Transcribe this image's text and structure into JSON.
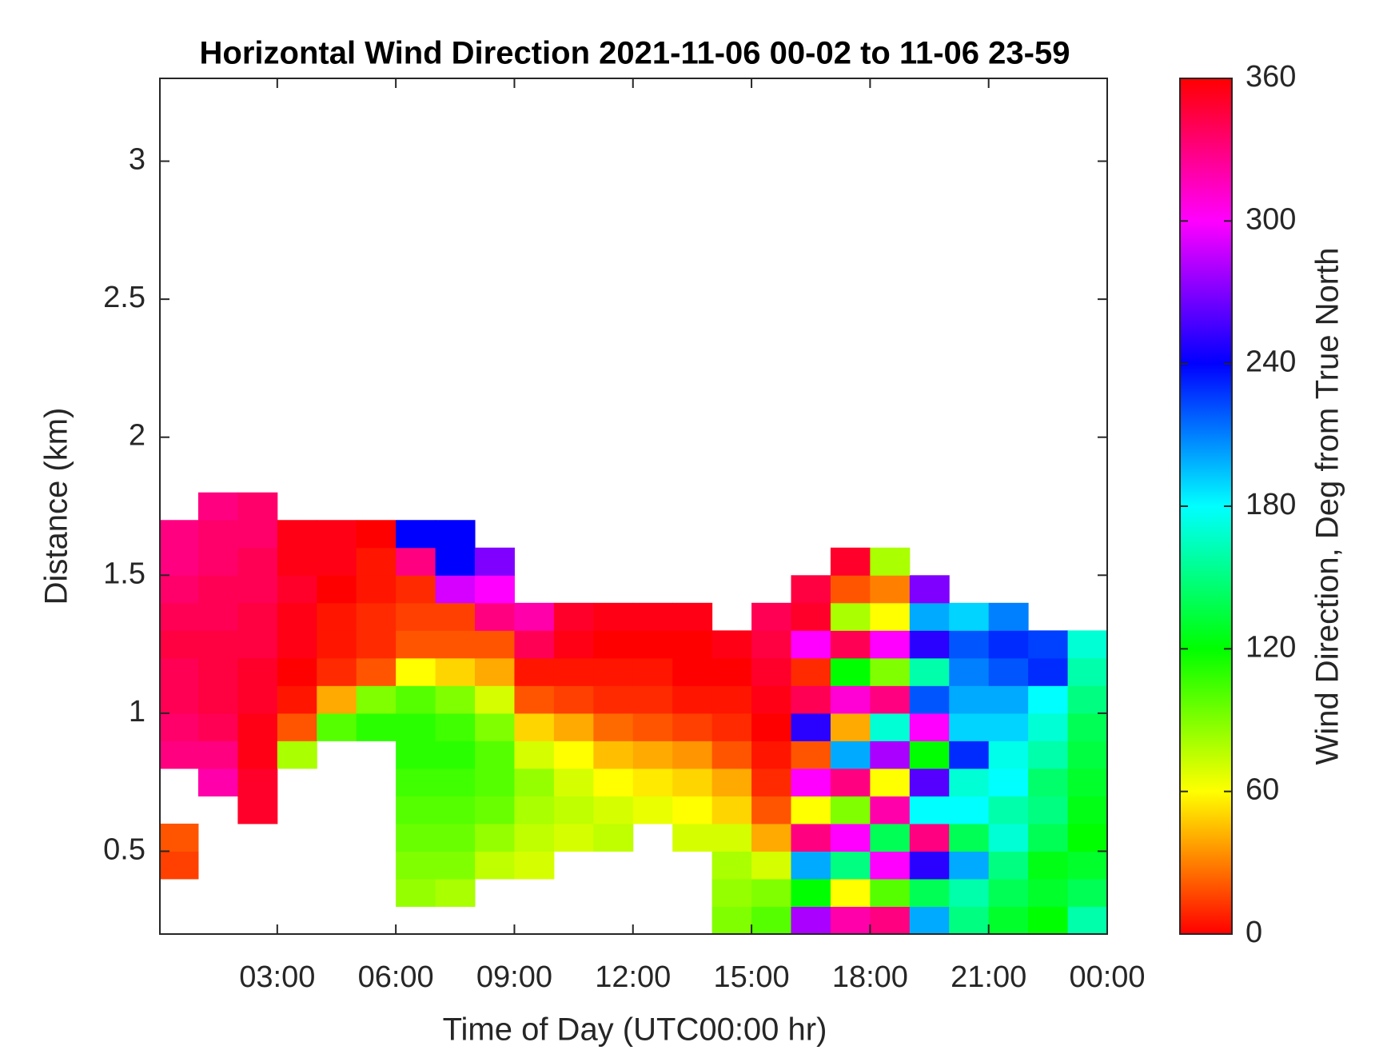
{
  "chart_data": {
    "type": "heatmap",
    "title": "Horizontal Wind Direction 2021-11-06 00-02 to 11-06 23-59",
    "x_label": "Time of Day (UTC00:00 hr)",
    "y_label": "Distance (km)",
    "colorbar_label": "Wind Direction, Deg from True North",
    "colormap": "hsv",
    "clim": [
      0,
      360
    ],
    "cticks": [
      0,
      60,
      120,
      180,
      240,
      300,
      360
    ],
    "xlim": [
      0.03,
      24
    ],
    "xticks": [
      {
        "value": 3,
        "label": "03:00"
      },
      {
        "value": 6,
        "label": "06:00"
      },
      {
        "value": 9,
        "label": "09:00"
      },
      {
        "value": 12,
        "label": "12:00"
      },
      {
        "value": 15,
        "label": "15:00"
      },
      {
        "value": 18,
        "label": "18:00"
      },
      {
        "value": 21,
        "label": "21:00"
      },
      {
        "value": 24,
        "label": "00:00"
      }
    ],
    "ylim": [
      0.2,
      3.3
    ],
    "yticks": [
      0.5,
      1,
      1.5,
      2,
      2.5,
      3
    ],
    "x": [
      0.5,
      1.5,
      2.5,
      3.5,
      4.5,
      5.5,
      6.5,
      7.5,
      8.5,
      9.5,
      10.5,
      11.5,
      12.5,
      13.5,
      14.5,
      15.5,
      16.5,
      17.5,
      18.5,
      19.5,
      20.5,
      21.5,
      22.5,
      23.5
    ],
    "y": [
      0.25,
      0.35,
      0.45,
      0.55,
      0.65,
      0.75,
      0.85,
      0.95,
      1.05,
      1.15,
      1.25,
      1.35,
      1.45,
      1.55,
      1.65,
      1.75
    ],
    "z": [
      [
        null,
        null,
        null,
        null,
        null,
        null,
        null,
        null,
        null,
        null,
        null,
        null,
        null,
        null,
        90,
        100,
        280,
        320,
        330,
        200,
        150,
        130,
        120,
        160
      ],
      [
        null,
        null,
        null,
        null,
        null,
        null,
        85,
        80,
        null,
        null,
        null,
        null,
        null,
        null,
        85,
        90,
        120,
        60,
        100,
        140,
        160,
        140,
        130,
        140
      ],
      [
        15,
        null,
        null,
        null,
        null,
        null,
        90,
        90,
        75,
        70,
        null,
        null,
        null,
        null,
        80,
        70,
        200,
        150,
        300,
        250,
        200,
        150,
        125,
        130
      ],
      [
        20,
        null,
        null,
        null,
        null,
        null,
        95,
        95,
        85,
        75,
        70,
        75,
        null,
        70,
        70,
        40,
        330,
        300,
        140,
        330,
        140,
        170,
        140,
        120
      ],
      [
        null,
        null,
        350,
        null,
        null,
        null,
        100,
        100,
        95,
        80,
        75,
        70,
        65,
        60,
        50,
        20,
        60,
        90,
        320,
        180,
        180,
        160,
        150,
        125
      ],
      [
        null,
        320,
        350,
        null,
        null,
        null,
        105,
        105,
        100,
        85,
        70,
        60,
        55,
        50,
        40,
        10,
        300,
        330,
        60,
        260,
        170,
        180,
        145,
        130
      ],
      [
        330,
        330,
        355,
        80,
        null,
        null,
        110,
        110,
        100,
        70,
        60,
        45,
        40,
        35,
        20,
        5,
        20,
        200,
        280,
        120,
        230,
        175,
        160,
        135
      ],
      [
        335,
        340,
        355,
        20,
        100,
        110,
        110,
        105,
        90,
        50,
        40,
        25,
        20,
        15,
        10,
        0,
        250,
        40,
        170,
        300,
        190,
        190,
        170,
        140
      ],
      [
        340,
        345,
        350,
        5,
        40,
        90,
        100,
        90,
        70,
        20,
        15,
        10,
        10,
        5,
        5,
        355,
        340,
        310,
        330,
        220,
        200,
        200,
        180,
        150
      ],
      [
        340,
        345,
        350,
        0,
        10,
        20,
        60,
        50,
        40,
        5,
        5,
        5,
        5,
        0,
        0,
        350,
        10,
        120,
        90,
        160,
        210,
        220,
        230,
        160
      ],
      [
        345,
        345,
        345,
        355,
        5,
        10,
        20,
        20,
        20,
        340,
        355,
        0,
        0,
        0,
        355,
        345,
        300,
        340,
        300,
        250,
        220,
        230,
        225,
        170
      ],
      [
        340,
        340,
        345,
        355,
        5,
        10,
        15,
        15,
        330,
        320,
        350,
        355,
        355,
        355,
        null,
        340,
        350,
        80,
        60,
        200,
        190,
        210,
        null,
        null
      ],
      [
        335,
        340,
        340,
        350,
        0,
        5,
        10,
        290,
        300,
        null,
        null,
        null,
        null,
        null,
        null,
        null,
        345,
        20,
        30,
        270,
        null,
        null,
        null,
        null
      ],
      [
        330,
        335,
        340,
        355,
        355,
        5,
        330,
        240,
        270,
        null,
        null,
        null,
        null,
        null,
        null,
        null,
        null,
        350,
        80,
        null,
        null,
        null,
        null,
        null
      ],
      [
        330,
        335,
        335,
        355,
        355,
        0,
        240,
        240,
        null,
        null,
        null,
        null,
        null,
        null,
        null,
        null,
        null,
        null,
        null,
        null,
        null,
        null,
        null,
        null
      ],
      [
        null,
        330,
        335,
        null,
        null,
        null,
        null,
        null,
        null,
        null,
        null,
        null,
        null,
        null,
        null,
        null,
        null,
        null,
        null,
        null,
        null,
        null,
        null,
        null
      ]
    ]
  }
}
